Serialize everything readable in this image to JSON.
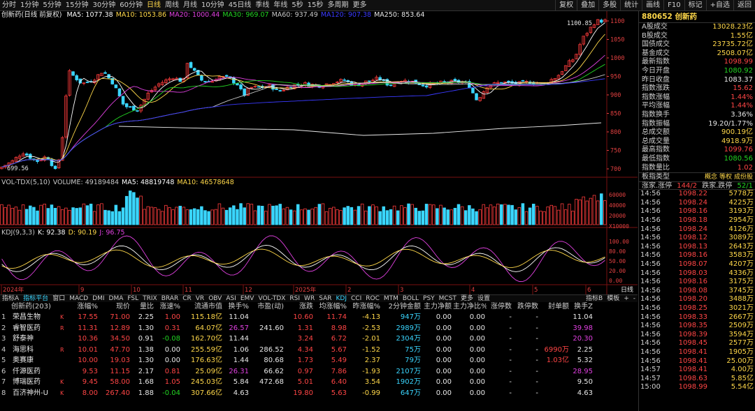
{
  "toolbar": {
    "periods": [
      "分时",
      "1分钟",
      "5分钟",
      "15分钟",
      "30分钟",
      "60分钟",
      "日线",
      "周线",
      "月线",
      "10分钟",
      "45日线",
      "季线",
      "年线",
      "5秒",
      "15秒",
      "多周期",
      "更多"
    ],
    "buttons": [
      "复权",
      "叠加",
      "多股",
      "统计",
      "画线",
      "F10",
      "标记",
      "+自选",
      "返回"
    ]
  },
  "main": {
    "name": "创新药(日线 前复权)",
    "ma": [
      {
        "label": "MA5: 1077.38",
        "color": "#ffffff"
      },
      {
        "label": "MA10: 1053.86",
        "color": "#ffd84a"
      },
      {
        "label": "MA20: 1000.44",
        "color": "#e040e0"
      },
      {
        "label": "MA30: 969.07",
        "color": "#22d422"
      },
      {
        "label": "MA60: 937.49",
        "color": "#c8c8c8"
      },
      {
        "label": "MA120: 907.38",
        "color": "#3a3aff"
      },
      {
        "label": "MA250: 853.64",
        "color": "#e8e8e8"
      }
    ],
    "high_label": "1100.85",
    "low_label": "699.56",
    "axis": [
      "1100",
      "1050",
      "1000",
      "950",
      "900",
      "850",
      "800",
      "750",
      "700"
    ]
  },
  "volume": {
    "header": [
      {
        "label": "VOL-TDX(5,10)",
        "color": "#c8c8c8"
      },
      {
        "label": "VOLUME: 49189484",
        "color": "#c8c8c8"
      },
      {
        "label": "MA5: 48819748",
        "color": "#ffffff"
      },
      {
        "label": "MA10: 46578648",
        "color": "#ffd84a"
      }
    ],
    "axis": [
      "60000",
      "40000",
      "20000",
      "X10000"
    ]
  },
  "kdj": {
    "header": [
      {
        "label": "KDJ(9,3,3)",
        "color": "#c8c8c8"
      },
      {
        "label": "K: 92.38",
        "color": "#ffffff"
      },
      {
        "label": "D: 90.19",
        "color": "#ffd84a"
      },
      {
        "label": "J: 96.75",
        "color": "#e040e0"
      }
    ],
    "axis": [
      "100.00",
      "80.00",
      "50.00",
      "20.00",
      "0.00"
    ]
  },
  "date_axis": {
    "labels": [
      "2024年",
      "9",
      "10",
      "11",
      "12",
      "2025年",
      "2",
      "3",
      "4",
      "5",
      "6"
    ],
    "period_btn": "日线"
  },
  "tabs": [
    "指标A",
    "指标平台",
    "窗口",
    "MACD",
    "DMI",
    "DMA",
    "FSL",
    "TRIX",
    "BRAR",
    "CR",
    "VR",
    "OBV",
    "ASI",
    "EMV",
    "VOL-TDX",
    "RSI",
    "WR",
    "SAR",
    "KDJ",
    "CCI",
    "ROC",
    "MTM",
    "BOLL",
    "PSY",
    "MCST",
    "更多",
    "设置"
  ],
  "tabs_right": [
    "指标B",
    "模板",
    "+",
    "-"
  ],
  "table": {
    "headers": [
      "创新药(203)",
      "涨幅%",
      "现价",
      "量比",
      "涨速%",
      "流通市值",
      "换手%",
      "市盈(动)",
      "涨跌",
      "均涨幅%",
      "昨涨幅%",
      "2分钟金额",
      "主力净额",
      "主力净比%",
      "涨停数",
      "跌停数",
      "封单额",
      "换手Z"
    ],
    "rows": [
      [
        "1",
        "荣昌生物",
        "K",
        "17.55",
        "71.00",
        "2.25",
        "1.00",
        "115.18亿",
        "11.04",
        "",
        "10.60",
        "11.74",
        "-4.13",
        "947万",
        "0.00",
        "0.00",
        "-",
        "-",
        "",
        "11.04"
      ],
      [
        "2",
        "睿智医药",
        "R",
        "11.31",
        "12.89",
        "1.30",
        "0.31",
        "64.07亿",
        "26.57",
        "241.60",
        "1.31",
        "8.98",
        "-2.53",
        "2989万",
        "0.00",
        "0.00",
        "-",
        "-",
        "",
        "39.98"
      ],
      [
        "3",
        "舒泰神",
        "",
        "10.36",
        "34.50",
        "0.91",
        "-0.08",
        "162.70亿",
        "11.44",
        "",
        "3.24",
        "6.72",
        "-2.01",
        "2304万",
        "0.00",
        "0.00",
        "-",
        "-",
        "",
        "20.30"
      ],
      [
        "4",
        "海思科",
        "R",
        "10.01",
        "47.70",
        "1.38",
        "0.00",
        "255.59亿",
        "1.06",
        "286.52",
        "4.34",
        "5.67",
        "-1.52",
        "75万",
        "0.00",
        "0.00",
        "-",
        "-",
        "6990万",
        "2.25"
      ],
      [
        "5",
        "奥赛康",
        "",
        "10.00",
        "19.03",
        "1.30",
        "0.00",
        "176.63亿",
        "1.44",
        "80.68",
        "1.73",
        "5.49",
        "2.37",
        "79万",
        "0.00",
        "0.00",
        "-",
        "-",
        "1.03亿",
        "5.32"
      ],
      [
        "6",
        "仟源医药",
        "",
        "9.53",
        "11.15",
        "2.17",
        "0.81",
        "25.09亿",
        "26.31",
        "66.62",
        "0.97",
        "7.86",
        "-1.93",
        "2107万",
        "0.00",
        "0.00",
        "-",
        "-",
        "",
        "28.95"
      ],
      [
        "7",
        "博瑞医药",
        "K",
        "9.45",
        "58.00",
        "1.68",
        "1.05",
        "245.03亿",
        "5.84",
        "472.68",
        "5.01",
        "6.40",
        "3.54",
        "1902万",
        "0.00",
        "0.00",
        "-",
        "-",
        "",
        "9.50"
      ],
      [
        "8",
        "百济神州-U",
        "K",
        "8.00",
        "267.40",
        "1.88",
        "-0.04",
        "307.66亿",
        "4.63",
        "",
        "19.80",
        "5.63",
        "-0.99",
        "647万",
        "0.00",
        "0.00",
        "-",
        "-",
        "",
        "4.63"
      ]
    ]
  },
  "side": {
    "title": "880652 创新药",
    "stats": [
      [
        "A股成交",
        "13028.23亿",
        "yellow"
      ],
      [
        "B股成交",
        "1.55亿",
        "yellow"
      ],
      [
        "国债成交",
        "23735.72亿",
        "yellow"
      ],
      [
        "基金成交",
        "2508.07亿",
        "yellow"
      ],
      [
        "最新指数",
        "1098.99",
        "red"
      ],
      [
        "今日开盘",
        "1080.92",
        "green"
      ],
      [
        "昨日收盘",
        "1083.37",
        "white"
      ],
      [
        "指数涨跌",
        "15.62",
        "red"
      ],
      [
        "指数涨幅",
        "1.44%",
        "red"
      ],
      [
        "平均涨幅",
        "1.44%",
        "red"
      ],
      [
        "指数换手",
        "3.36%",
        "white"
      ],
      [
        "指数振幅",
        "19.20/1.77%",
        "white"
      ],
      [
        "总成交额",
        "900.19亿",
        "yellow"
      ],
      [
        "总成交量",
        "4918.9万",
        "yellow"
      ],
      [
        "最高指数",
        "1099.76",
        "red"
      ],
      [
        "最低指数",
        "1080.56",
        "green"
      ],
      [
        "指数量比",
        "1.02",
        "red"
      ]
    ],
    "type_row": {
      "label": "板指类型",
      "tags": [
        "概念",
        "等权",
        "成份股"
      ]
    },
    "updown": {
      "label1": "涨家.涨停",
      "val1": "144/2",
      "label2": "跌家.跌停",
      "val2": "52/1"
    },
    "ticks": [
      [
        "14:56",
        "1098.22",
        "5778万"
      ],
      [
        "14:56",
        "1098.24",
        "4225万"
      ],
      [
        "14:56",
        "1098.16",
        "3193万"
      ],
      [
        "14:56",
        "1098.18",
        "2954万"
      ],
      [
        "14:56",
        "1098.24",
        "4126万"
      ],
      [
        "14:56",
        "1098.12",
        "3089万"
      ],
      [
        "14:56",
        "1098.13",
        "2643万"
      ],
      [
        "14:56",
        "1098.16",
        "3583万"
      ],
      [
        "14:56",
        "1098.07",
        "4207万"
      ],
      [
        "14:56",
        "1098.03",
        "4336万"
      ],
      [
        "14:56",
        "1098.16",
        "3175万"
      ],
      [
        "14:56",
        "1098.08",
        "3745万"
      ],
      [
        "14:56",
        "1098.20",
        "3488万"
      ],
      [
        "14:56",
        "1098.25",
        "3021万"
      ],
      [
        "14:56",
        "1098.33",
        "2667万"
      ],
      [
        "14:56",
        "1098.35",
        "2509万"
      ],
      [
        "14:56",
        "1098.39",
        "3594万"
      ],
      [
        "14:56",
        "1098.45",
        "2577万"
      ],
      [
        "14:56",
        "1098.41",
        "1905万"
      ],
      [
        "14:56",
        "1098.41",
        "25.00万"
      ],
      [
        "14:57",
        "1098.41",
        "4.00万"
      ],
      [
        "14:57",
        "1098.63",
        "5.85亿"
      ],
      [
        "15:00",
        "1098.99",
        "5.54亿"
      ]
    ]
  }
}
